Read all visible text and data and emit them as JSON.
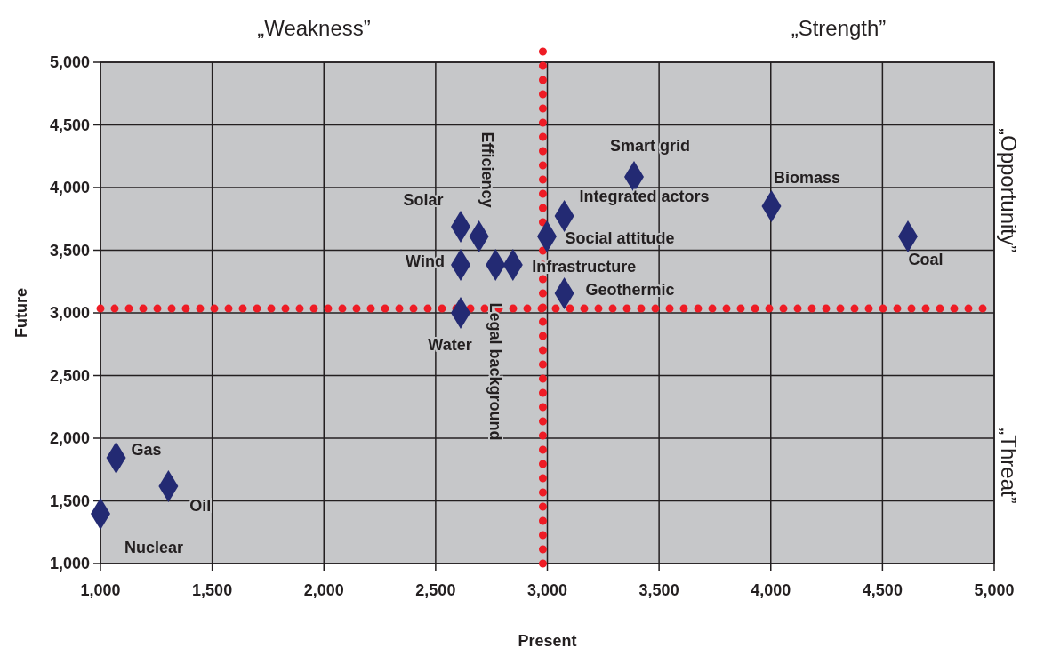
{
  "chart_data": {
    "type": "scatter",
    "xlabel": "Present",
    "ylabel": "Future",
    "x": [
      1000,
      1070,
      1304,
      2612,
      2612,
      2612,
      2694,
      2768,
      2846,
      2998,
      3076,
      3076,
      3388,
      4003,
      4614
    ],
    "values": [
      1397,
      1844,
      1617,
      3000,
      3383,
      3688,
      3610,
      3383,
      3383,
      3610,
      3773,
      3156,
      4085,
      3851,
      3610
    ],
    "color": "#232a73",
    "marker": "diamond",
    "grid": true,
    "xlim": [
      1000,
      5000
    ],
    "ylim": [
      1000,
      5000
    ],
    "xticks": [
      {
        "value": 1000,
        "label": "1,000"
      },
      {
        "value": 1500,
        "label": "1,500"
      },
      {
        "value": 2000,
        "label": "2,000"
      },
      {
        "value": 2500,
        "label": "2,500"
      },
      {
        "value": 3000,
        "label": "3,000"
      },
      {
        "value": 3500,
        "label": "3,500"
      },
      {
        "value": 4000,
        "label": "4,000"
      },
      {
        "value": 4500,
        "label": "4,500"
      },
      {
        "value": 5000,
        "label": "5,000"
      }
    ],
    "yticks": [
      {
        "value": 1000,
        "label": "1,000"
      },
      {
        "value": 1500,
        "label": "1,500"
      },
      {
        "value": 2000,
        "label": "2,000"
      },
      {
        "value": 2500,
        "label": "2,500"
      },
      {
        "value": 3000,
        "label": "3,000"
      },
      {
        "value": 3500,
        "label": "3,500"
      },
      {
        "value": 4000,
        "label": "4,000"
      },
      {
        "value": 4500,
        "label": "4,500"
      },
      {
        "value": 5000,
        "label": "5,000"
      }
    ],
    "ref_lines": [
      {
        "axis": "x",
        "value": 2980,
        "color": "#ee1c25",
        "line_style": "dotted"
      },
      {
        "axis": "y",
        "value": 3035,
        "color": "#ee1c25",
        "line_style": "dotted"
      }
    ],
    "annotations": [
      "„Weakness”",
      "„Strength”",
      "„Opportunity”",
      "„Threat”",
      {
        "text": "Nuclear",
        "x": 1000,
        "y": 1397
      },
      {
        "text": "Gas",
        "x": 1070,
        "y": 1844
      },
      {
        "text": "Oil",
        "x": 1304,
        "y": 1617
      },
      {
        "text": "Water",
        "x": 2612,
        "y": 3000
      },
      {
        "text": "Wind",
        "x": 2612,
        "y": 3383
      },
      {
        "text": "Solar",
        "x": 2612,
        "y": 3688
      },
      {
        "text": "Efficiency",
        "x": 2694,
        "y": 3610
      },
      {
        "text": "Legal background",
        "x": 2768,
        "y": 3383
      },
      {
        "text": "Infrastructure",
        "x": 2846,
        "y": 3383
      },
      {
        "text": "Social attitude",
        "x": 2998,
        "y": 3610
      },
      {
        "text": "Integrated actors",
        "x": 3076,
        "y": 3773
      },
      {
        "text": "Geothermic",
        "x": 3076,
        "y": 3156
      },
      {
        "text": "Smart grid",
        "x": 3388,
        "y": 4085
      },
      {
        "text": "Biomass",
        "x": 4003,
        "y": 3851
      },
      {
        "text": "Coal",
        "x": 4614,
        "y": 3610
      }
    ]
  }
}
